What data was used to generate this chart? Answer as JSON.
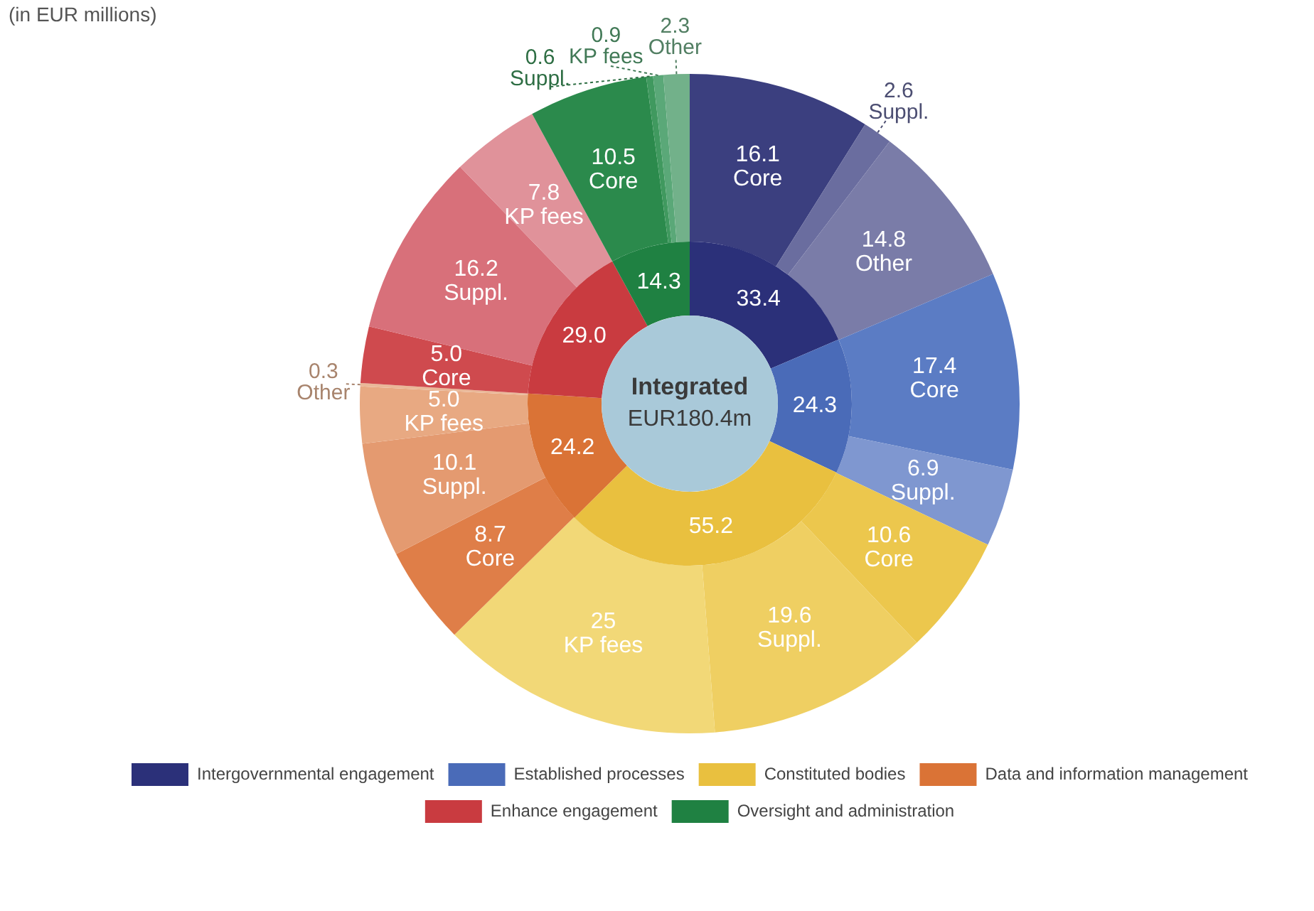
{
  "chart_data": [
    {
      "type": "donut",
      "subtitle": "(in EUR millions)",
      "annotations": [
        "Integrated",
        "EUR180.4m"
      ],
      "legend": "bottom",
      "categories": [
        "Intergovernmental engagement",
        "Established processes",
        "Constituted bodies",
        "Data and information management",
        "Enhance engagement",
        "Oversight and administration"
      ],
      "values": [
        33.4,
        24.3,
        55.2,
        24.2,
        29.0,
        14.3
      ],
      "value_labels": [
        "33.4",
        "24.3",
        "55.2",
        "24.2",
        "29.0",
        "14.3"
      ],
      "colors": [
        "#2b3079",
        "#4a6bb8",
        "#e9c03f",
        "#da7336",
        "#c93b40",
        "#1f8142"
      ]
    },
    {
      "type": "donut",
      "categories": [
        "Core",
        "Suppl.",
        "Other",
        "Core",
        "Suppl.",
        "Core",
        "Suppl.",
        "KP fees",
        "Core",
        "Suppl.",
        "KP fees",
        "Other",
        "Core",
        "Suppl.",
        "KP fees",
        "Core",
        "Suppl.",
        "KP fees",
        "Other"
      ],
      "values": [
        16.1,
        2.6,
        14.8,
        17.4,
        6.9,
        10.6,
        19.6,
        25,
        8.7,
        10.1,
        5.0,
        0.3,
        5.0,
        16.2,
        7.8,
        10.5,
        0.6,
        0.9,
        2.3
      ],
      "value_labels": [
        "16.1",
        "2.6",
        "14.8",
        "17.4",
        "6.9",
        "10.6",
        "19.6",
        "25",
        "8.7",
        "10.1",
        "5.0",
        "0.3",
        "5.0",
        "16.2",
        "7.8",
        "10.5",
        "0.6",
        "0.9",
        "2.3"
      ],
      "colors": [
        "#3b3f7f",
        "#6a6d9f",
        "#7a7ca8",
        "#5b7cc4",
        "#7f97d0",
        "#ecc74d",
        "#efcf62",
        "#f2d877",
        "#df7e48",
        "#e49a70",
        "#e8a982",
        "#eab898",
        "#cf4a4e",
        "#d8707a",
        "#e0929a",
        "#2b8a4c",
        "#40995f",
        "#5aa878",
        "#72b18a"
      ]
    }
  ]
}
